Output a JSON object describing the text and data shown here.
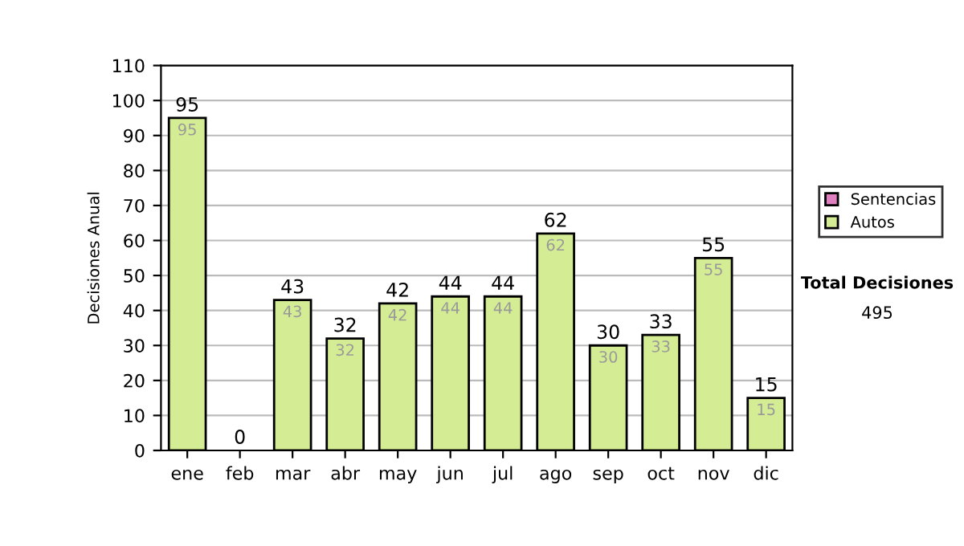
{
  "chart_data": {
    "type": "bar",
    "stacked": true,
    "ylabel": "Decisiones Anual",
    "categories": [
      "ene",
      "feb",
      "mar",
      "abr",
      "may",
      "jun",
      "jul",
      "ago",
      "sep",
      "oct",
      "nov",
      "dic"
    ],
    "series": [
      {
        "name": "Sentencias",
        "color": "#e080c0",
        "values": [
          0,
          0,
          0,
          0,
          0,
          0,
          0,
          0,
          0,
          0,
          0,
          0
        ]
      },
      {
        "name": "Autos",
        "color": "#d4ec94",
        "values": [
          95,
          0,
          43,
          32,
          42,
          44,
          44,
          62,
          30,
          33,
          55,
          15
        ],
        "value_labels": [
          "95",
          null,
          "43",
          "32",
          "42",
          "44",
          "44",
          "62",
          "30",
          "33",
          "55",
          "15"
        ]
      }
    ],
    "totals": [
      "95",
      "0",
      "43",
      "32",
      "42",
      "44",
      "44",
      "62",
      "30",
      "33",
      "55",
      "15"
    ],
    "ylim": [
      0,
      110
    ],
    "yticks": [
      0,
      10,
      20,
      30,
      40,
      50,
      60,
      70,
      80,
      90,
      100,
      110
    ],
    "grid": "y",
    "legend": "right",
    "annotations": [
      "Total Decisiones",
      "495"
    ]
  }
}
